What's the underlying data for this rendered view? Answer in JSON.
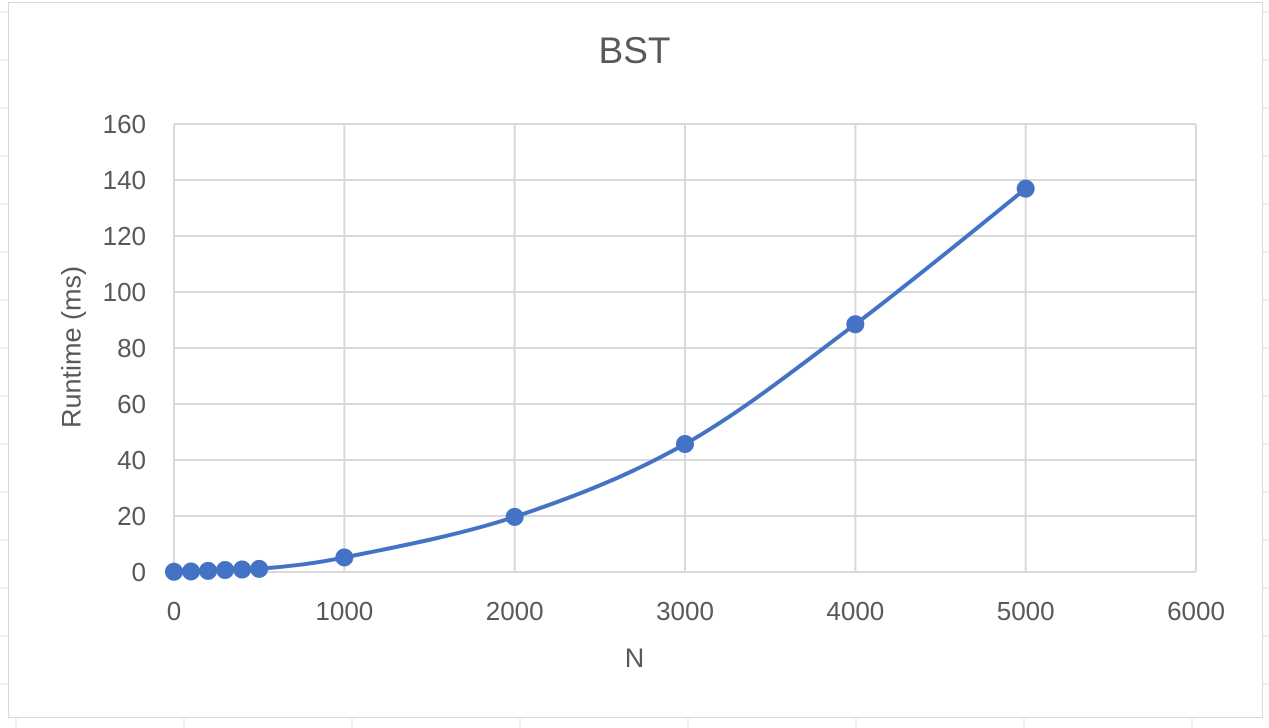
{
  "chart_data": {
    "type": "scatter",
    "title": "BST",
    "xlabel": "N",
    "ylabel": "Runtime (ms)",
    "xlim": [
      0,
      6000
    ],
    "ylim": [
      0,
      160
    ],
    "x_ticks": [
      0,
      1000,
      2000,
      3000,
      4000,
      5000,
      6000
    ],
    "y_ticks": [
      0,
      20,
      40,
      60,
      80,
      100,
      120,
      140,
      160
    ],
    "grid": true,
    "smooth_line": true,
    "legend": "none",
    "series": [
      {
        "color": "#4472c4",
        "x": [
          0,
          100,
          200,
          300,
          400,
          500,
          1000,
          2000,
          3000,
          4000,
          5000
        ],
        "y": [
          0.1,
          0.2,
          0.4,
          0.7,
          0.9,
          1.1,
          5.2,
          19.7,
          45.7,
          88.5,
          136.9
        ]
      }
    ],
    "colors": {
      "grid": "#d9d9d9",
      "axis_text": "#595959",
      "series": "#4472c4"
    }
  }
}
